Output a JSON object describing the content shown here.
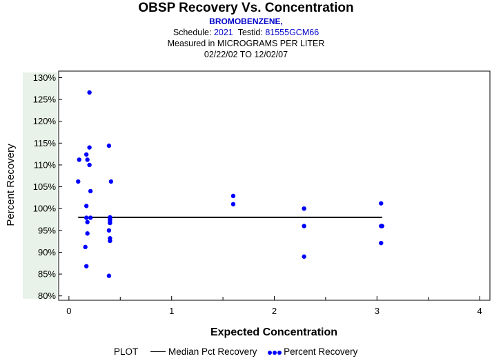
{
  "header": {
    "title": "OBSP Recovery Vs. Concentration",
    "compound": "BROMOBENZENE,",
    "schedule_label": "Schedule:",
    "schedule_value": "2021",
    "testid_label": "Testid:",
    "testid_value": "81555GCM66",
    "measured": "Measured in  MICROGRAMS PER LITER",
    "date_range": "02/22/02 TO 12/02/07"
  },
  "legend": {
    "plot_label": "PLOT",
    "median_label": "Median Pct Recovery",
    "recovery_label": "Percent Recovery"
  },
  "colors": {
    "points": "#0000ff",
    "median_line": "#000000",
    "header_accent": "#0000cc",
    "tick_band": "#e8f2e8"
  },
  "chart_data": {
    "type": "scatter",
    "title": "OBSP Recovery Vs. Concentration",
    "xlabel": "Expected Concentration",
    "ylabel": "Percent Recovery",
    "xlim": [
      -0.1,
      4.1
    ],
    "ylim": [
      79,
      131.5
    ],
    "x_ticks": [
      0,
      1,
      2,
      3,
      4
    ],
    "x_tick_labels": [
      "0",
      "1",
      "2",
      "3",
      "4"
    ],
    "y_ticks": [
      80,
      85,
      90,
      95,
      100,
      105,
      110,
      115,
      120,
      125,
      130
    ],
    "y_tick_labels": [
      "80%",
      "85%",
      "90%",
      "95%",
      "100%",
      "105%",
      "110%",
      "115%",
      "120%",
      "125%",
      "130%"
    ],
    "median": {
      "name": "Median Pct Recovery",
      "value": 98,
      "x_range": [
        0.09,
        3.05
      ]
    },
    "series": [
      {
        "name": "Percent Recovery",
        "points": [
          [
            0.1,
            111.2
          ],
          [
            0.09,
            106.2
          ],
          [
            0.17,
            112.4
          ],
          [
            0.18,
            111.2
          ],
          [
            0.17,
            100.6
          ],
          [
            0.17,
            97.9
          ],
          [
            0.18,
            96.9
          ],
          [
            0.18,
            94.3
          ],
          [
            0.16,
            91.2
          ],
          [
            0.17,
            86.8
          ],
          [
            0.2,
            126.6
          ],
          [
            0.2,
            114
          ],
          [
            0.2,
            110
          ],
          [
            0.21,
            104
          ],
          [
            0.21,
            97.9
          ],
          [
            0.39,
            114.4
          ],
          [
            0.41,
            106.2
          ],
          [
            0.4,
            98
          ],
          [
            0.4,
            97.7
          ],
          [
            0.4,
            97.3
          ],
          [
            0.4,
            96.7
          ],
          [
            0.39,
            95
          ],
          [
            0.4,
            93.2
          ],
          [
            0.4,
            92.6
          ],
          [
            0.39,
            84.6
          ],
          [
            1.6,
            102.9
          ],
          [
            1.6,
            101
          ],
          [
            2.29,
            100
          ],
          [
            2.29,
            96
          ],
          [
            2.29,
            89
          ],
          [
            3.04,
            101.2
          ],
          [
            3.04,
            96
          ],
          [
            3.05,
            96
          ],
          [
            3.04,
            92.1
          ]
        ]
      }
    ]
  }
}
